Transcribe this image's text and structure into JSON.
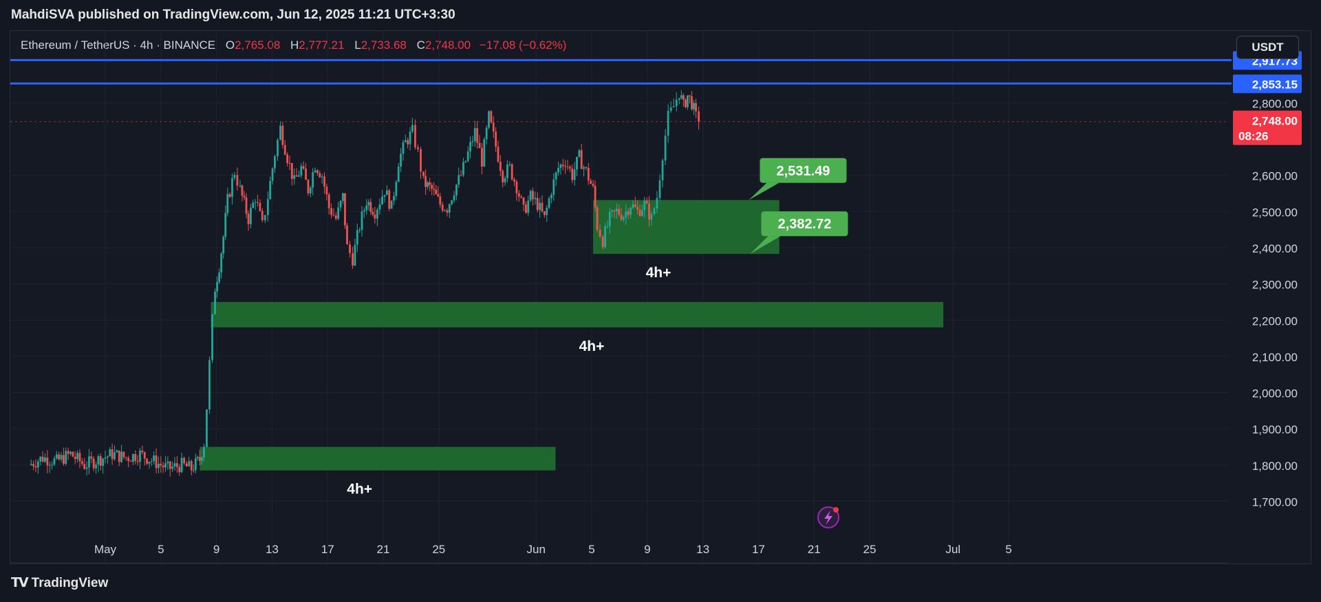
{
  "publisher": "MahdiSVA published on TradingView.com, Jun 12, 2025 11:21 UTC+3:30",
  "brand": "TradingView",
  "currency_button": "USDT",
  "legend": {
    "symbol": "Ethereum / TetherUS · 4h · BINANCE",
    "o_label": "O",
    "o_value": "2,765.08",
    "h_label": "H",
    "h_value": "2,777.21",
    "l_label": "L",
    "l_value": "2,733.68",
    "c_label": "C",
    "c_value": "2,748.00",
    "change": "−17.08 (−0.62%)"
  },
  "colors": {
    "background": "#131722",
    "up": "#26a69a",
    "down": "#ef5350",
    "zone": "#1f6b30",
    "hline": "#2962ff",
    "label_green": "#4caf50",
    "price_red": "#f23645"
  },
  "chart_data": {
    "type": "candlestick",
    "title": "Ethereum / TetherUS · 4h · BINANCE",
    "ylim": [
      1640,
      2960
    ],
    "y_ticks": [
      1700,
      1800,
      1900,
      2000,
      2100,
      2200,
      2300,
      2400,
      2500,
      2600,
      2800
    ],
    "y_tick_labels": [
      "1,700.00",
      "1,800.00",
      "1,900.00",
      "2,000.00",
      "2,100.00",
      "2,200.00",
      "2,300.00",
      "2,400.00",
      "2,500.00",
      "2,600.00",
      "2,800.00"
    ],
    "x_ticks": [
      {
        "day": 1,
        "label": "May"
      },
      {
        "day": 5,
        "label": "5"
      },
      {
        "day": 9,
        "label": "9"
      },
      {
        "day": 13,
        "label": "13"
      },
      {
        "day": 17,
        "label": "17"
      },
      {
        "day": 21,
        "label": "21"
      },
      {
        "day": 25,
        "label": "25"
      },
      {
        "day": 32,
        "label": "Jun"
      },
      {
        "day": 36,
        "label": "5"
      },
      {
        "day": 40,
        "label": "9"
      },
      {
        "day": 44,
        "label": "13"
      },
      {
        "day": 48,
        "label": "17"
      },
      {
        "day": 52,
        "label": "21"
      },
      {
        "day": 56,
        "label": "25"
      },
      {
        "day": 62,
        "label": "Jul"
      },
      {
        "day": 66,
        "label": "5"
      }
    ],
    "price_path": [
      [
        -4.5,
        1800
      ],
      [
        -3.5,
        1820
      ],
      [
        -2.5,
        1810
      ],
      [
        -1.5,
        1830
      ],
      [
        -0.5,
        1800
      ],
      [
        0.5,
        1815
      ],
      [
        1.5,
        1830
      ],
      [
        2.5,
        1820
      ],
      [
        3.5,
        1830
      ],
      [
        4.5,
        1810
      ],
      [
        5.5,
        1790
      ],
      [
        6.5,
        1800
      ],
      [
        7.2,
        1790
      ],
      [
        7.8,
        1815
      ],
      [
        8.1,
        1860
      ],
      [
        8.3,
        1960
      ],
      [
        8.5,
        2080
      ],
      [
        8.7,
        2200
      ],
      [
        8.9,
        2290
      ],
      [
        9.2,
        2350
      ],
      [
        9.5,
        2430
      ],
      [
        9.8,
        2530
      ],
      [
        10.3,
        2610
      ],
      [
        10.7,
        2560
      ],
      [
        11.3,
        2480
      ],
      [
        11.8,
        2540
      ],
      [
        12.3,
        2460
      ],
      [
        12.7,
        2540
      ],
      [
        13.2,
        2660
      ],
      [
        13.6,
        2730
      ],
      [
        14.1,
        2650
      ],
      [
        14.6,
        2580
      ],
      [
        15.1,
        2620
      ],
      [
        15.6,
        2560
      ],
      [
        16.1,
        2630
      ],
      [
        16.6,
        2600
      ],
      [
        17.1,
        2510
      ],
      [
        17.6,
        2480
      ],
      [
        18.1,
        2540
      ],
      [
        18.4,
        2400
      ],
      [
        18.8,
        2370
      ],
      [
        19.3,
        2460
      ],
      [
        19.8,
        2530
      ],
      [
        20.4,
        2500
      ],
      [
        21.1,
        2560
      ],
      [
        21.6,
        2510
      ],
      [
        22.1,
        2640
      ],
      [
        22.6,
        2690
      ],
      [
        23.1,
        2720
      ],
      [
        23.5,
        2660
      ],
      [
        23.9,
        2580
      ],
      [
        24.5,
        2560
      ],
      [
        25.1,
        2520
      ],
      [
        25.6,
        2510
      ],
      [
        26.1,
        2560
      ],
      [
        26.6,
        2600
      ],
      [
        27.1,
        2660
      ],
      [
        27.6,
        2720
      ],
      [
        28.1,
        2640
      ],
      [
        28.6,
        2760
      ],
      [
        29.1,
        2680
      ],
      [
        29.6,
        2600
      ],
      [
        30.1,
        2620
      ],
      [
        30.6,
        2570
      ],
      [
        31.1,
        2500
      ],
      [
        31.6,
        2540
      ],
      [
        32.1,
        2520
      ],
      [
        32.6,
        2480
      ],
      [
        33.1,
        2560
      ],
      [
        33.6,
        2620
      ],
      [
        34.1,
        2640
      ],
      [
        34.6,
        2600
      ],
      [
        35.1,
        2650
      ],
      [
        35.6,
        2610
      ],
      [
        36.1,
        2560
      ],
      [
        36.4,
        2460
      ],
      [
        36.8,
        2420
      ],
      [
        37.3,
        2480
      ],
      [
        37.8,
        2500
      ],
      [
        38.3,
        2490
      ],
      [
        38.8,
        2520
      ],
      [
        39.3,
        2500
      ],
      [
        39.8,
        2520
      ],
      [
        40.3,
        2480
      ],
      [
        40.7,
        2540
      ],
      [
        41.1,
        2660
      ],
      [
        41.5,
        2760
      ],
      [
        41.9,
        2790
      ],
      [
        42.3,
        2830
      ],
      [
        42.6,
        2790
      ],
      [
        42.9,
        2820
      ],
      [
        43.2,
        2800
      ],
      [
        43.5,
        2760
      ],
      [
        43.7,
        2748
      ]
    ],
    "zones": [
      {
        "x_from": 7.8,
        "x_to": 33.4,
        "low": 1785,
        "high": 1850,
        "label": "4h+",
        "label_day": 19.3
      },
      {
        "x_from": 8.6,
        "x_to": 61.3,
        "low": 2180,
        "high": 2250,
        "label": "4h+",
        "label_day": 36
      },
      {
        "x_from": 36.1,
        "x_to": 49.5,
        "low": 2382.72,
        "high": 2531.49,
        "label": "4h+",
        "label_day": 40.8
      }
    ],
    "callouts": [
      {
        "value": 2531.49,
        "text": "2,531.49",
        "day": 48.1,
        "price": 2613
      },
      {
        "value": 2382.72,
        "text": "2,382.72",
        "day": 48.2,
        "price": 2466
      }
    ],
    "hlines": [
      {
        "value": 2917.73,
        "label": "2,917.73"
      },
      {
        "value": 2853.15,
        "label": "2,853.15"
      }
    ],
    "current_price": {
      "value": 2748.0,
      "label": "2,748.00",
      "countdown": "08:26"
    }
  }
}
